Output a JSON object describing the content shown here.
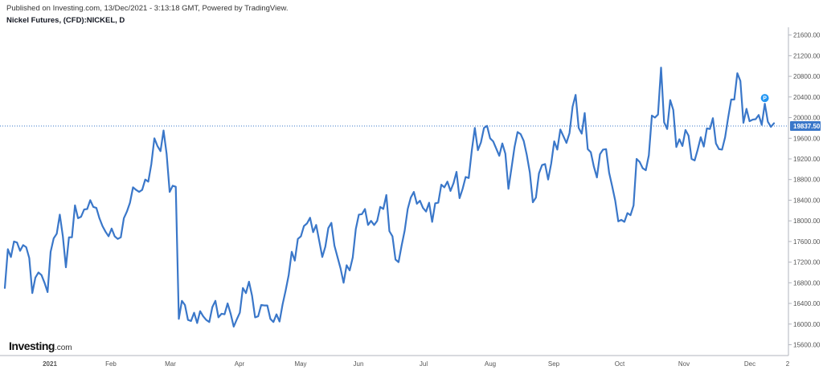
{
  "header": {
    "published": "Published on Investing.com, 13/Dec/2021 - 3:13:18 GMT, Powered by TradingView.",
    "title": "Nickel Futures, (CFD):NICKEL, D"
  },
  "branding": {
    "logo_main": "Investing",
    "logo_suffix": ".com"
  },
  "colors": {
    "line": "#3A77C9",
    "last_price_bg": "#3A77C9",
    "last_price_text": "#ffffff",
    "marker": "#2196F3"
  },
  "chart_data": {
    "type": "line",
    "title": "Nickel Futures, (CFD):NICKEL, D",
    "xlabel": "",
    "ylabel": "",
    "ylim": [
      15390,
      21750
    ],
    "y_ticks": [
      15600,
      16000,
      16400,
      16800,
      17200,
      17600,
      18000,
      18400,
      18800,
      19200,
      19600,
      20000,
      20400,
      20800,
      21200,
      21600
    ],
    "y_tick_labels": [
      "15600.00",
      "16000.00",
      "16400.00",
      "16800.00",
      "17200.00",
      "17600.00",
      "18000.00",
      "18400.00",
      "18800.00",
      "19200.00",
      "19600.00",
      "20000.00",
      "20400.00",
      "20800.00",
      "21200.00",
      "21600.00"
    ],
    "x_ticks": [
      "2021",
      "Feb",
      "Mar",
      "Apr",
      "May",
      "Jun",
      "Jul",
      "Aug",
      "Sep",
      "Oct",
      "Nov",
      "Dec",
      "2"
    ],
    "last_price": 19837.5,
    "last_price_label": "19837.50",
    "marker_label": "P",
    "grid": false,
    "legend": "none",
    "series": [
      {
        "values": [
          16700,
          17450,
          17300,
          17600,
          17580,
          17420,
          17530,
          17490,
          17280,
          16600,
          16900,
          17000,
          16950,
          16800,
          16620,
          17400,
          17660,
          17750,
          18120,
          17700,
          17100,
          17680,
          17680,
          18300,
          18050,
          18080,
          18220,
          18230,
          18400,
          18270,
          18250,
          18050,
          17900,
          17790,
          17700,
          17850,
          17700,
          17650,
          17680,
          18050,
          18180,
          18350,
          18650,
          18600,
          18560,
          18600,
          18800,
          18760,
          19100,
          19600,
          19450,
          19350,
          19750,
          19300,
          18560,
          18680,
          18660,
          16100,
          16450,
          16370,
          16080,
          16060,
          16220,
          16020,
          16250,
          16150,
          16080,
          16040,
          16330,
          16450,
          16130,
          16200,
          16190,
          16400,
          16200,
          15950,
          16090,
          16220,
          16700,
          16600,
          16820,
          16550,
          16130,
          16150,
          16370,
          16360,
          16360,
          16100,
          16040,
          16190,
          16050,
          16380,
          16650,
          16950,
          17400,
          17230,
          17650,
          17700,
          17900,
          17950,
          18060,
          17780,
          17920,
          17610,
          17300,
          17500,
          17860,
          17960,
          17520,
          17300,
          17080,
          16800,
          17140,
          17040,
          17290,
          17840,
          18120,
          18130,
          18230,
          17920,
          18000,
          17920,
          18000,
          18270,
          18230,
          18500,
          17800,
          17700,
          17250,
          17200,
          17520,
          17810,
          18230,
          18450,
          18560,
          18330,
          18390,
          18250,
          18180,
          18350,
          17980,
          18340,
          18350,
          18700,
          18650,
          18760,
          18580,
          18730,
          18950,
          18440,
          18620,
          18850,
          18830,
          19360,
          19800,
          19370,
          19520,
          19800,
          19840,
          19600,
          19540,
          19400,
          19260,
          19500,
          19300,
          18620,
          19020,
          19430,
          19720,
          19680,
          19550,
          19280,
          18940,
          18360,
          18450,
          18920,
          19080,
          19100,
          18800,
          19110,
          19540,
          19380,
          19770,
          19640,
          19510,
          19700,
          20210,
          20440,
          19800,
          19690,
          20090,
          19390,
          19330,
          19050,
          18840,
          19290,
          19380,
          19390,
          18930,
          18670,
          18390,
          17990,
          18020,
          17980,
          18150,
          18110,
          18300,
          19200,
          19140,
          19020,
          18980,
          19270,
          20040,
          20000,
          20060,
          20970,
          19910,
          19780,
          20340,
          20150,
          19430,
          19580,
          19450,
          19760,
          19650,
          19200,
          19170,
          19380,
          19620,
          19440,
          19790,
          19780,
          19990,
          19500,
          19390,
          19380,
          19620,
          20000,
          20350,
          20350,
          20860,
          20710,
          19900,
          20170,
          19930,
          19960,
          19970,
          20050,
          19860,
          20270,
          19920,
          19820,
          19890
        ]
      }
    ]
  }
}
